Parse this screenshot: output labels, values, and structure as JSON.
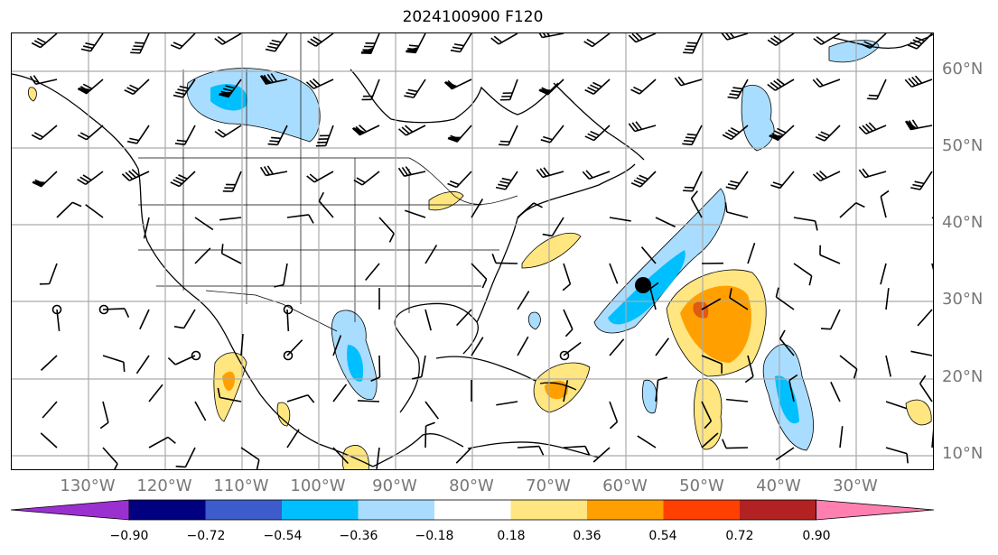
{
  "title": "2024100900 F120",
  "lat_labels": [
    "60°N",
    "50°N",
    "40°N",
    "30°N",
    "20°N",
    "10°N"
  ],
  "lon_labels": [
    "130°W",
    "120°W",
    "110°W",
    "100°W",
    "90°W",
    "80°W",
    "70°W",
    "60°W",
    "50°W",
    "40°W",
    "30°W"
  ],
  "colorbar": {
    "ticks": [
      "−0.90",
      "−0.72",
      "−0.54",
      "−0.36",
      "−0.18",
      "0.18",
      "0.36",
      "0.54",
      "0.72",
      "0.90"
    ],
    "colors": [
      "#9b30d0",
      "#000080",
      "#3c5ccc",
      "#00bfff",
      "#a9ddff",
      "#ffffff",
      "#ffe680",
      "#ffa000",
      "#ff4000",
      "#b22222",
      "#ff80b0"
    ]
  },
  "colors": {
    "fill_pos1": "#ffe680",
    "fill_pos2": "#ffa000",
    "fill_pos3": "#e05a10",
    "fill_neg1": "#a9ddff",
    "fill_neg2": "#00bfff",
    "grid": "#aaaaaa",
    "label": "#777777"
  },
  "icons": [
    "wind-barb-icon",
    "calm-wind-circle-icon",
    "storm-center-marker-icon"
  ]
}
